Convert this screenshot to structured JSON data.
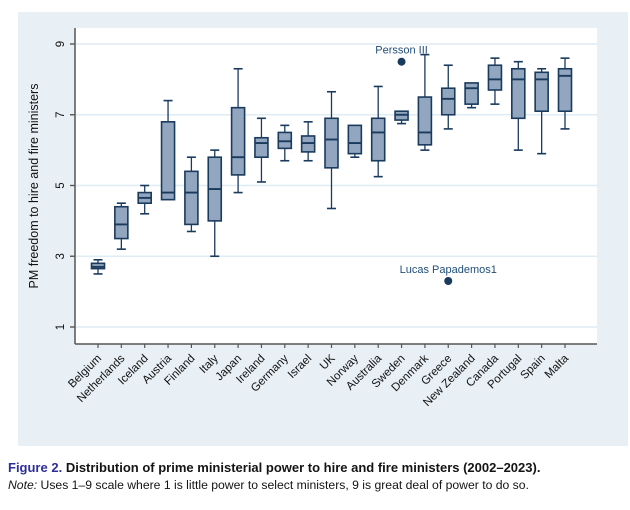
{
  "figure": {
    "caption_label": "Figure 2.",
    "caption_text": "Distribution of prime ministerial power to hire and fire ministers (2002–2023).",
    "note_label": "Note:",
    "note_text": "Uses 1–9 scale where 1 is little power to select ministers, 9 is great deal of power to do so."
  },
  "colors": {
    "panel_bg": "#e9f0f5",
    "plot_bg": "#ffffff",
    "grid": "#dfecf4",
    "box_fill": "#92a7bf",
    "box_border": "#1a3a5e",
    "whisker": "#1a3a5e",
    "outlier_dot": "#1a3a5e",
    "axis": "#555555",
    "tick_text": "#111111",
    "annotation_text": "#1f4e79",
    "figure_label": "#2e2e9b"
  },
  "chart_data": {
    "type": "box",
    "title": "",
    "xlabel": "",
    "ylabel": "PM freedom to hire and fire ministers",
    "ylim": [
      1,
      9
    ],
    "yticks": [
      1,
      3,
      5,
      7,
      9
    ],
    "grid": true,
    "categories": [
      "Belgium",
      "Netherlands",
      "Iceland",
      "Austria",
      "Finland",
      "Italy",
      "Japan",
      "Ireland",
      "Germany",
      "Israel",
      "UK",
      "Norway",
      "Australia",
      "Sweden",
      "Denmark",
      "Greece",
      "New Zealand",
      "Canada",
      "Portugal",
      "Spain",
      "Malta"
    ],
    "boxes": [
      {
        "label": "Belgium",
        "lo": 2.5,
        "q1": 2.65,
        "med": 2.7,
        "q3": 2.8,
        "hi": 2.9,
        "outliers": []
      },
      {
        "label": "Netherlands",
        "lo": 3.2,
        "q1": 3.5,
        "med": 3.9,
        "q3": 4.4,
        "hi": 4.5,
        "outliers": []
      },
      {
        "label": "Iceland",
        "lo": 4.2,
        "q1": 4.5,
        "med": 4.65,
        "q3": 4.8,
        "hi": 5.0,
        "outliers": []
      },
      {
        "label": "Austria",
        "lo": 4.6,
        "q1": 4.6,
        "med": 4.8,
        "q3": 6.8,
        "hi": 7.4,
        "outliers": []
      },
      {
        "label": "Finland",
        "lo": 3.7,
        "q1": 3.9,
        "med": 4.8,
        "q3": 5.4,
        "hi": 5.8,
        "outliers": []
      },
      {
        "label": "Italy",
        "lo": 3.0,
        "q1": 4.0,
        "med": 4.9,
        "q3": 5.8,
        "hi": 6.0,
        "outliers": []
      },
      {
        "label": "Japan",
        "lo": 4.8,
        "q1": 5.3,
        "med": 5.8,
        "q3": 7.2,
        "hi": 8.3,
        "outliers": []
      },
      {
        "label": "Ireland",
        "lo": 5.1,
        "q1": 5.8,
        "med": 6.2,
        "q3": 6.35,
        "hi": 6.9,
        "outliers": []
      },
      {
        "label": "Germany",
        "lo": 5.7,
        "q1": 6.05,
        "med": 6.25,
        "q3": 6.5,
        "hi": 6.7,
        "outliers": []
      },
      {
        "label": "Israel",
        "lo": 5.7,
        "q1": 5.95,
        "med": 6.2,
        "q3": 6.4,
        "hi": 6.8,
        "outliers": []
      },
      {
        "label": "UK",
        "lo": 4.35,
        "q1": 5.5,
        "med": 6.3,
        "q3": 6.9,
        "hi": 7.65,
        "outliers": []
      },
      {
        "label": "Norway",
        "lo": 5.8,
        "q1": 5.9,
        "med": 6.2,
        "q3": 6.7,
        "hi": 6.7,
        "outliers": []
      },
      {
        "label": "Australia",
        "lo": 5.25,
        "q1": 5.7,
        "med": 6.5,
        "q3": 6.9,
        "hi": 7.8,
        "outliers": []
      },
      {
        "label": "Sweden",
        "lo": 6.75,
        "q1": 6.85,
        "med": 7.0,
        "q3": 7.1,
        "hi": 7.1,
        "outliers": [
          {
            "value": 8.5,
            "label": "Persson III"
          }
        ]
      },
      {
        "label": "Denmark",
        "lo": 6.0,
        "q1": 6.15,
        "med": 6.5,
        "q3": 7.5,
        "hi": 8.7,
        "outliers": []
      },
      {
        "label": "Greece",
        "lo": 6.6,
        "q1": 7.0,
        "med": 7.45,
        "q3": 7.75,
        "hi": 8.4,
        "outliers": [
          {
            "value": 2.3,
            "label": "Lucas Papademos1"
          }
        ]
      },
      {
        "label": "New Zealand",
        "lo": 7.2,
        "q1": 7.3,
        "med": 7.75,
        "q3": 7.9,
        "hi": 7.9,
        "outliers": []
      },
      {
        "label": "Canada",
        "lo": 7.3,
        "q1": 7.7,
        "med": 8.0,
        "q3": 8.4,
        "hi": 8.6,
        "outliers": []
      },
      {
        "label": "Portugal",
        "lo": 6.0,
        "q1": 6.9,
        "med": 8.0,
        "q3": 8.3,
        "hi": 8.5,
        "outliers": []
      },
      {
        "label": "Spain",
        "lo": 5.9,
        "q1": 7.1,
        "med": 8.0,
        "q3": 8.2,
        "hi": 8.3,
        "outliers": []
      },
      {
        "label": "Malta",
        "lo": 6.6,
        "q1": 7.1,
        "med": 8.1,
        "q3": 8.3,
        "hi": 8.6,
        "outliers": []
      }
    ],
    "legend": null,
    "annotations": [
      "Persson III",
      "Lucas Papademos1"
    ]
  }
}
